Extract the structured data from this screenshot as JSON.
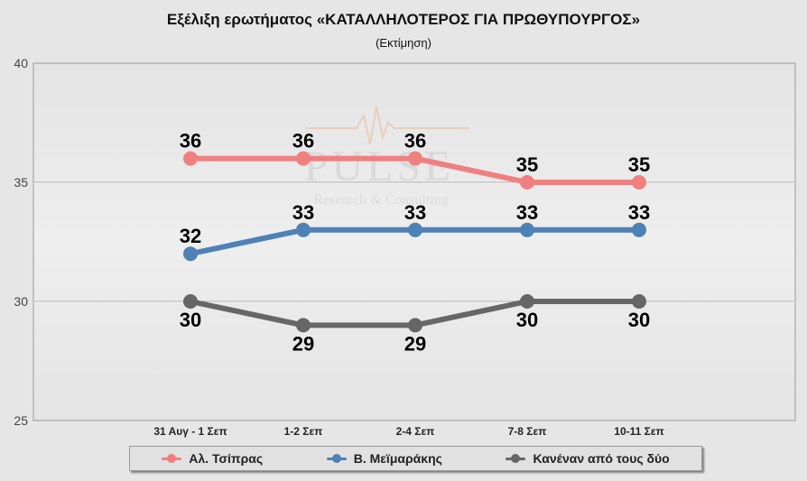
{
  "chart_data": {
    "type": "line",
    "title": "Εξέλιξη ερωτήματος «ΚΑΤΑΛΛΗΛΟΤΕΡΟΣ ΓΙΑ ΠΡΩΘΥΠΟΥΡΓΟΣ»",
    "subtitle": "(Εκτίμηση)",
    "xlabel": "",
    "ylabel": "",
    "categories": [
      "31 Αυγ - 1 Σεπ",
      "1-2 Σεπ",
      "2-4 Σεπ",
      "7-8 Σεπ",
      "10-11 Σεπ"
    ],
    "ylim": [
      25,
      40
    ],
    "yticks": [
      "25",
      "30",
      "35",
      "40"
    ],
    "grid": true,
    "legend_position": "bottom",
    "series": [
      {
        "name": "Αλ. Τσίπρας",
        "color": "#f08080",
        "values": [
          36,
          36,
          36,
          35,
          35
        ],
        "label_position": "above"
      },
      {
        "name": "Β. Μεϊμαράκης",
        "color": "#4e81b5",
        "values": [
          32,
          33,
          33,
          33,
          33
        ],
        "label_position": "above"
      },
      {
        "name": "Κανέναν από τους δύο",
        "color": "#666666",
        "values": [
          30,
          29,
          29,
          30,
          30
        ],
        "label_position": "below"
      }
    ]
  },
  "watermark": {
    "text": "PULSE",
    "subtext": "Research & Consulting"
  }
}
